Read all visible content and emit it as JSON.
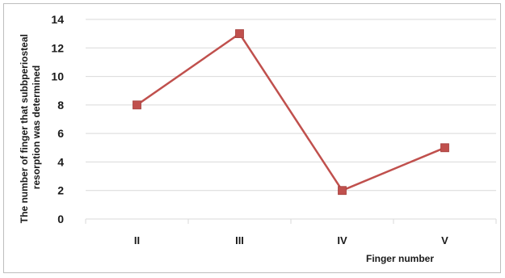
{
  "chart_data": {
    "type": "line",
    "title": "",
    "xlabel": "Finger number",
    "ylabel": "The number of finger that subbperiosteal resorption was determined",
    "ylabel_lines": [
      "The number of finger that subbperiosteal",
      "resorption was determined"
    ],
    "categories": [
      "II",
      "III",
      "IV",
      "V"
    ],
    "series": [
      {
        "values": [
          8,
          13,
          2,
          5
        ]
      }
    ],
    "ylim": [
      0,
      14
    ],
    "yticks": [
      "0",
      "2",
      "4",
      "6",
      "8",
      "10",
      "12",
      "14"
    ],
    "grid": "horizontal",
    "legend": "none",
    "line_color": "#c0504d",
    "marker_color": "#c0504d",
    "grid_color": "#d9d9d9"
  }
}
